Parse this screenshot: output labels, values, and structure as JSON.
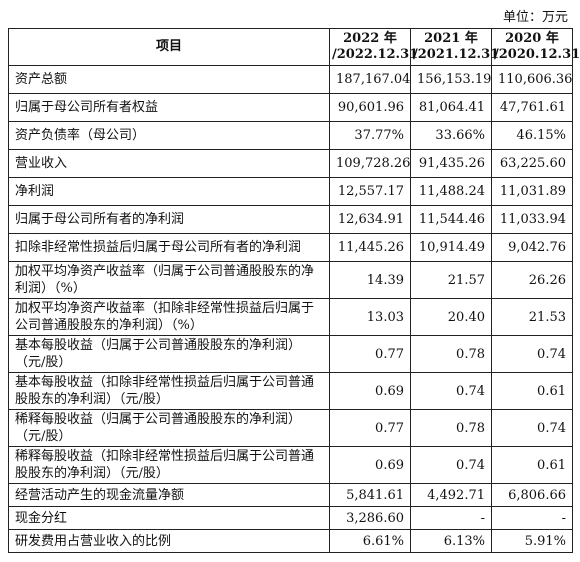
{
  "unit_label": "单位：万元",
  "header": {
    "item": "项目",
    "years": [
      {
        "line1": "2022 年",
        "line2": "/2022.12.31"
      },
      {
        "line1": "2021 年",
        "line2": "/2021.12.31"
      },
      {
        "line1": "2020 年",
        "line2": "/2020.12.31"
      }
    ]
  },
  "rows": [
    {
      "label": "资产总额",
      "values": [
        "187,167.04",
        "156,153.19",
        "110,606.36"
      ]
    },
    {
      "label": "归属于母公司所有者权益",
      "values": [
        "90,601.96",
        "81,064.41",
        "47,761.61"
      ]
    },
    {
      "label": "资产负债率（母公司）",
      "values": [
        "37.77%",
        "33.66%",
        "46.15%"
      ]
    },
    {
      "label": "营业收入",
      "values": [
        "109,728.26",
        "91,435.26",
        "63,225.60"
      ]
    },
    {
      "label": "净利润",
      "values": [
        "12,557.17",
        "11,488.24",
        "11,031.89"
      ]
    },
    {
      "label": "归属于母公司所有者的净利润",
      "values": [
        "12,634.91",
        "11,544.46",
        "11,033.94"
      ]
    },
    {
      "label": "扣除非经常性损益后归属于母公司所有者的净利润",
      "values": [
        "11,445.26",
        "10,914.49",
        "9,042.76"
      ]
    },
    {
      "label": "加权平均净资产收益率（归属于公司普通股股东的净利润）（%）",
      "values": [
        "14.39",
        "21.57",
        "26.26"
      ]
    },
    {
      "label": "加权平均净资产收益率（扣除非经常性损益后归属于公司普通股股东的净利润）（%）",
      "values": [
        "13.03",
        "20.40",
        "21.53"
      ]
    },
    {
      "label": "基本每股收益（归属于公司普通股股东的净利润）（元/股）",
      "values": [
        "0.77",
        "0.78",
        "0.74"
      ]
    },
    {
      "label": "基本每股收益（扣除非经常性损益后归属于公司普通股股东的净利润）（元/股）",
      "values": [
        "0.69",
        "0.74",
        "0.61"
      ]
    },
    {
      "label": "稀释每股收益（归属于公司普通股股东的净利润）（元/股）",
      "values": [
        "0.77",
        "0.78",
        "0.74"
      ]
    },
    {
      "label": "稀释每股收益（扣除非经常性损益后归属于公司普通股股东的净利润）（元/股）",
      "values": [
        "0.69",
        "0.74",
        "0.61"
      ]
    },
    {
      "label": "经营活动产生的现金流量净额",
      "values": [
        "5,841.61",
        "4,492.71",
        "6,806.66"
      ]
    },
    {
      "label": "现金分红",
      "values": [
        "3,286.60",
        "-",
        "-"
      ]
    },
    {
      "label": "研发费用占营业收入的比例",
      "values": [
        "6.61%",
        "6.13%",
        "5.91%"
      ]
    }
  ]
}
